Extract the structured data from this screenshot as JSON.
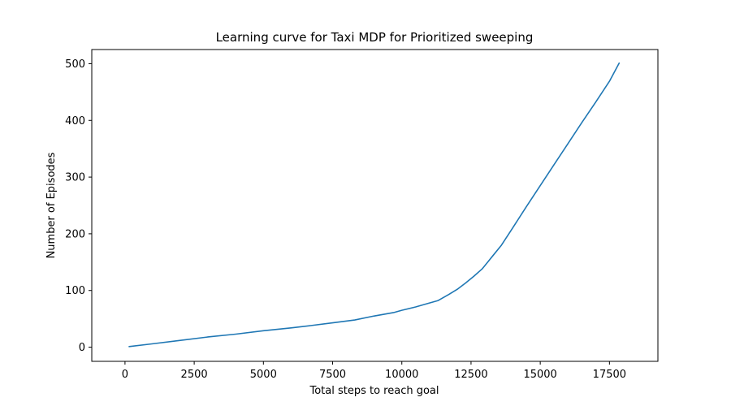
{
  "chart_data": {
    "type": "line",
    "title": "Learning curve for Taxi MDP for Prioritized sweeping",
    "xlabel": "Total steps to reach goal",
    "ylabel": "Number of Episodes",
    "xlim": [
      -1200,
      19250
    ],
    "ylim": [
      -25,
      525
    ],
    "xticks": [
      0,
      2500,
      5000,
      7500,
      10000,
      12500,
      15000,
      17500
    ],
    "yticks": [
      0,
      100,
      200,
      300,
      400,
      500
    ],
    "grid": false,
    "legend": "none",
    "series": [
      {
        "color": "#1f77b4",
        "x": [
          150,
          1000,
          2000,
          3000,
          4000,
          5000,
          6000,
          6700,
          7500,
          8300,
          9000,
          9700,
          10000,
          10500,
          11000,
          11300,
          11700,
          12000,
          12300,
          12600,
          12900,
          13100,
          13300,
          13600,
          14000,
          14500,
          15000,
          15500,
          16000,
          16500,
          17000,
          17500,
          17850
        ],
        "y": [
          1,
          6,
          12,
          18,
          23,
          29,
          34,
          38,
          43,
          48,
          55,
          61,
          65,
          71,
          78,
          82,
          93,
          102,
          113,
          125,
          138,
          150,
          162,
          180,
          210,
          248,
          285,
          322,
          359,
          396,
          432,
          469,
          501
        ]
      }
    ]
  }
}
